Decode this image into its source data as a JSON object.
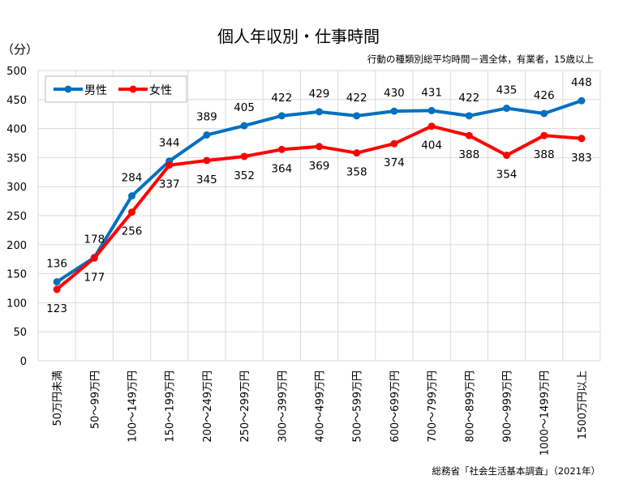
{
  "chart_data": {
    "type": "line",
    "title": "個人年収別・仕事時間",
    "subtitle": "行動の種類別総平均時間－週全体，有業者，15歳以上",
    "ylabel": "（分）",
    "source": "総務省「社会生活基本調査」（2021年）",
    "ylim": [
      0,
      500
    ],
    "yticks": [
      0,
      50,
      100,
      150,
      200,
      250,
      300,
      350,
      400,
      450,
      500
    ],
    "grid": true,
    "legend_position": "top-left",
    "categories": [
      "50万円未満",
      "50～99万円",
      "100～149万円",
      "150～199万円",
      "200～249万円",
      "250～299万円",
      "300～399万円",
      "400～499万円",
      "500～599万円",
      "600～699万円",
      "700～799万円",
      "800～899万円",
      "900～999万円",
      "1000～1499万円",
      "1500万円以上"
    ],
    "series": [
      {
        "name": "男性",
        "color": "#0070c0",
        "values": [
          136,
          178,
          284,
          344,
          389,
          405,
          422,
          429,
          422,
          430,
          431,
          422,
          435,
          426,
          448
        ]
      },
      {
        "name": "女性",
        "color": "#ff0000",
        "values": [
          123,
          177,
          256,
          337,
          345,
          352,
          364,
          369,
          358,
          374,
          404,
          388,
          354,
          388,
          383
        ]
      }
    ]
  }
}
